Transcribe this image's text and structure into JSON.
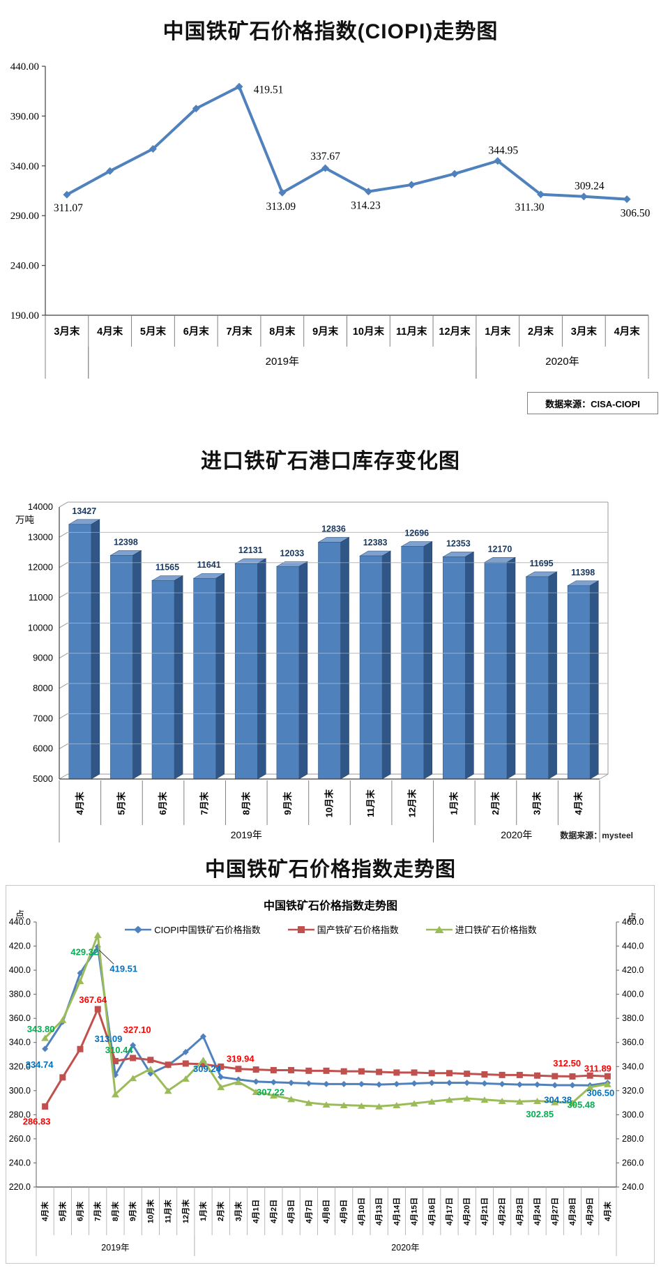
{
  "colors": {
    "line_blue": "#4f81bd",
    "line_red": "#c0504d",
    "line_green": "#9bbb59",
    "bar_front": "#4f81bd",
    "bar_side": "#2f5686",
    "bar_top": "#7fa1d0",
    "label_blue": "#0070c0",
    "label_red": "#ff0000",
    "label_green": "#00b050",
    "axis_gray": "#808080",
    "bar_label": "#17375e"
  },
  "chart1": {
    "title": "中国铁矿石价格指数(CIOPI)走势图",
    "source": "数据来源：CISA-CIOPI"
  },
  "chart2": {
    "title": "进口铁矿石港口库存变化图",
    "source": "数据来源：mysteel",
    "unit": "万吨"
  },
  "chart3": {
    "big_title": "中国铁矿石价格指数走势图",
    "title": "中国铁矿石价格指数走势图",
    "unit_left": "点",
    "unit_right": "点"
  },
  "chart_data": [
    {
      "type": "line",
      "title": "中国铁矿石价格指数(CIOPI)走势图",
      "categories": [
        "3月末",
        "4月末",
        "5月末",
        "6月末",
        "7月末",
        "8月末",
        "9月末",
        "10月末",
        "11月末",
        "12月末",
        "1月末",
        "2月末",
        "3月末",
        "4月末"
      ],
      "values": [
        311.07,
        334.74,
        357.04,
        397.55,
        419.51,
        313.09,
        337.67,
        314.23,
        321.0,
        332.0,
        344.95,
        311.3,
        309.24,
        306.5
      ],
      "labeled_points": [
        {
          "i": 0,
          "t": "311.07",
          "ox": 2,
          "oy": 19
        },
        {
          "i": 4,
          "t": "419.51",
          "ox": 42,
          "oy": 4
        },
        {
          "i": 5,
          "t": "313.09",
          "ox": -2,
          "oy": 20
        },
        {
          "i": 6,
          "t": "337.67",
          "ox": 0,
          "oy": -17
        },
        {
          "i": 7,
          "t": "314.23",
          "ox": -4,
          "oy": 20
        },
        {
          "i": 10,
          "t": "344.95",
          "ox": 8,
          "oy": -15
        },
        {
          "i": 11,
          "t": "311.30",
          "ox": -16,
          "oy": 18
        },
        {
          "i": 12,
          "t": "309.24",
          "ox": 8,
          "oy": -15
        },
        {
          "i": 13,
          "t": "306.50",
          "ox": 12,
          "oy": 20
        }
      ],
      "ylim": [
        190,
        440
      ],
      "yticks": [
        440,
        390,
        340,
        290,
        240,
        190
      ],
      "grid": false,
      "year_groups": [
        {
          "label": "",
          "start": 0,
          "end": 0
        },
        {
          "label": "2019年",
          "start": 1,
          "end": 9
        },
        {
          "label": "2020年",
          "start": 10,
          "end": 13
        }
      ]
    },
    {
      "type": "bar",
      "title": "进口铁矿石港口库存变化图",
      "ylabel": "万吨",
      "categories": [
        "4月末",
        "5月末",
        "6月末",
        "7月末",
        "8月末",
        "9月末",
        "10月末",
        "11月末",
        "12月末",
        "1月末",
        "2月末",
        "3月末",
        "4月末"
      ],
      "values": [
        13427,
        12398,
        11565,
        11641,
        12131,
        12033,
        12836,
        12383,
        12696,
        12353,
        12170,
        11695,
        11398
      ],
      "ylim": [
        5000,
        14000
      ],
      "yticks": [
        14000,
        13000,
        12000,
        11000,
        10000,
        9000,
        8000,
        7000,
        6000,
        5000
      ],
      "grid": true,
      "year_groups": [
        {
          "label": "2019年",
          "start": 0,
          "end": 8
        },
        {
          "label": "2020年",
          "start": 9,
          "end": 12
        }
      ]
    },
    {
      "type": "line",
      "title": "中国铁矿石价格指数走势图",
      "ylabel_left": "点",
      "ylabel_right": "点",
      "ylim_left": [
        220,
        440
      ],
      "ylim_right": [
        240,
        460
      ],
      "ytick_step": 20,
      "legend_position": "top",
      "categories": [
        "4月末",
        "5月末",
        "6月末",
        "7月末",
        "8月末",
        "9月末",
        "10月末",
        "11月末",
        "12月末",
        "1月末",
        "2月末",
        "3月末",
        "4月1日",
        "4月2日",
        "4月3日",
        "4月7日",
        "4月8日",
        "4月9日",
        "4月10日",
        "4月13日",
        "4月14日",
        "4月15日",
        "4月16日",
        "4月17日",
        "4月20日",
        "4月21日",
        "4月22日",
        "4月23日",
        "4月24日",
        "4月27日",
        "4月28日",
        "4月29日",
        "4月末"
      ],
      "year_groups": [
        {
          "label": "2019年",
          "start": 0,
          "end": 8
        },
        {
          "label": "2020年",
          "start": 9,
          "end": 32
        }
      ],
      "series": [
        {
          "name": "CIOPI中国铁矿石价格指数",
          "marker": "diamond",
          "color": "#4f81bd",
          "label_color": "#0070c0",
          "values": [
            334.74,
            357.04,
            397.55,
            419.51,
            313.09,
            337.67,
            314.23,
            321.0,
            332.0,
            344.95,
            311.3,
            309.24,
            307.5,
            307.0,
            306.5,
            306.0,
            305.5,
            305.5,
            305.5,
            305.0,
            305.5,
            306.0,
            306.5,
            306.5,
            306.5,
            306.0,
            305.5,
            305.0,
            305.0,
            304.5,
            304.5,
            304.38,
            306.5
          ],
          "labeled_points": [
            {
              "i": 0,
              "t": "334.74",
              "ox": -8,
              "oy": 23
            },
            {
              "i": 3,
              "t": "419.51",
              "ox": 37,
              "oy": 32,
              "leader": true
            },
            {
              "i": 4,
              "t": "313.09",
              "ox": -10,
              "oy": -51
            },
            {
              "i": 11,
              "t": "309.24",
              "ox": -45,
              "oy": -15
            },
            {
              "i": 31,
              "t": "304.38",
              "ox": -46,
              "oy": 21
            },
            {
              "i": 32,
              "t": "306.50",
              "ox": -10,
              "oy": 15
            }
          ]
        },
        {
          "name": "国产铁矿石价格指数",
          "marker": "square",
          "color": "#c0504d",
          "label_color": "#ff0000",
          "values": [
            286.83,
            311.0,
            334.5,
            367.64,
            324.5,
            327.1,
            325.5,
            321.5,
            322.5,
            322.0,
            319.94,
            318.0,
            317.5,
            317.0,
            317.0,
            316.5,
            316.5,
            316.0,
            316.0,
            315.5,
            315.0,
            315.0,
            314.5,
            314.5,
            314.0,
            313.5,
            313.0,
            313.0,
            312.5,
            312.0,
            311.8,
            312.5,
            311.89
          ],
          "labeled_points": [
            {
              "i": 0,
              "t": "286.83",
              "ox": -12,
              "oy": 22
            },
            {
              "i": 3,
              "t": "367.64",
              "ox": -7,
              "oy": -13
            },
            {
              "i": 5,
              "t": "327.10",
              "ox": 6,
              "oy": -40
            },
            {
              "i": 10,
              "t": "319.94",
              "ox": 28,
              "oy": -11
            },
            {
              "i": 31,
              "t": "312.50",
              "ox": -33,
              "oy": -17
            },
            {
              "i": 32,
              "t": "311.89",
              "ox": -14,
              "oy": -11
            }
          ]
        },
        {
          "name": "进口铁矿石价格指数",
          "marker": "triangle",
          "color": "#9bbb59",
          "label_color": "#00b050",
          "values": [
            343.8,
            358.8,
            391.0,
            429.32,
            297.0,
            310.44,
            318.0,
            300.0,
            310.0,
            325.5,
            303.0,
            307.22,
            299.0,
            296.0,
            293.0,
            290.0,
            288.5,
            288.0,
            287.5,
            287.0,
            288.0,
            289.5,
            291.0,
            292.5,
            293.5,
            292.5,
            291.5,
            291.0,
            291.5,
            290.5,
            290.0,
            302.85,
            305.48
          ],
          "labeled_points": [
            {
              "i": 0,
              "t": "343.80",
              "ox": -6,
              "oy": -12
            },
            {
              "i": 3,
              "t": "429.32",
              "ox": -19,
              "oy": 25
            },
            {
              "i": 5,
              "t": "310.44",
              "ox": -20,
              "oy": -40
            },
            {
              "i": 11,
              "t": "307.22",
              "ox": 46,
              "oy": 15
            },
            {
              "i": 31,
              "t": "302.85",
              "ox": -72,
              "oy": 39
            },
            {
              "i": 32,
              "t": "305.48",
              "ox": -38,
              "oy": 30
            }
          ]
        }
      ]
    }
  ]
}
